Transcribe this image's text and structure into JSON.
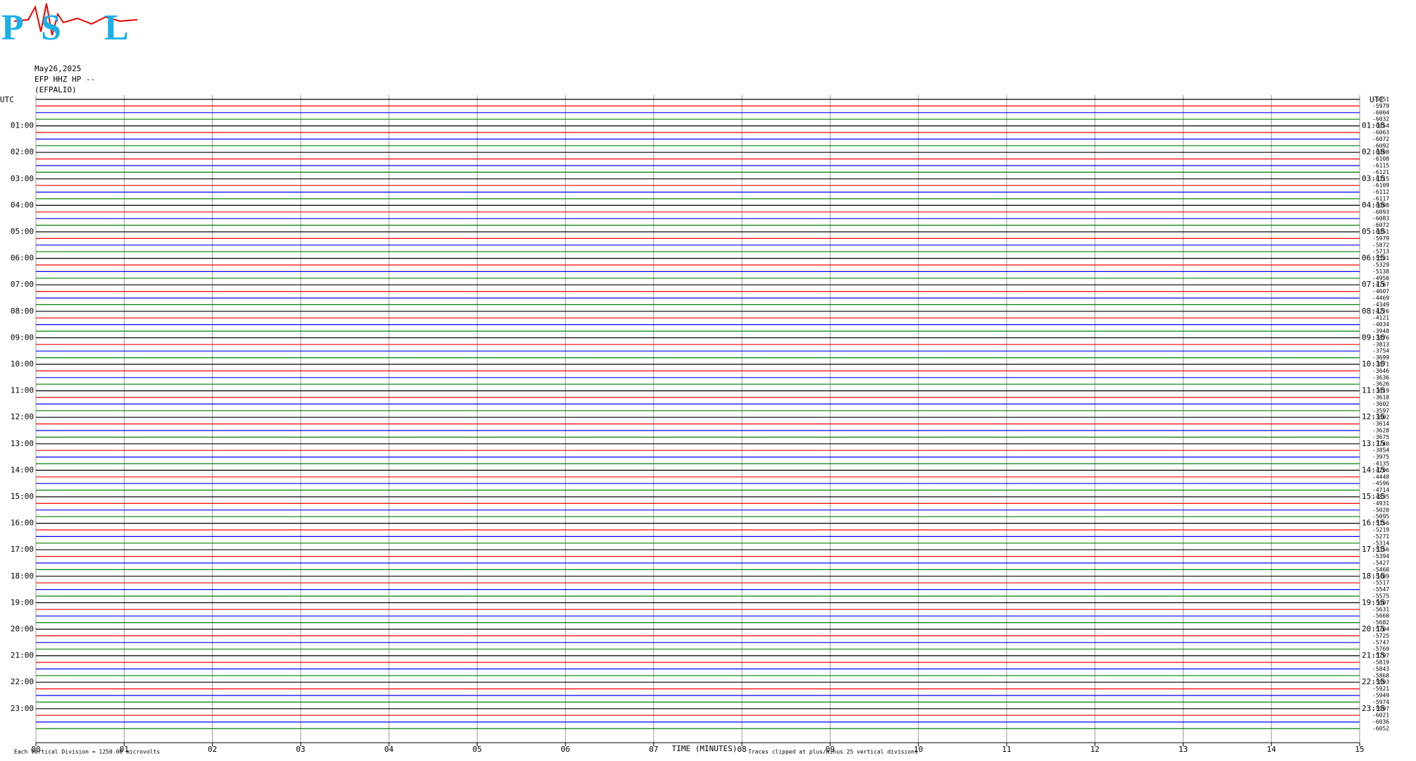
{
  "logo": {
    "letters": [
      "P",
      "S",
      "L"
    ]
  },
  "header": {
    "date": "May26,2025",
    "station": "EFP HHZ HP --",
    "site": "(EFPALIO)"
  },
  "left_axis": {
    "title": "UTC",
    "labels": [
      "01:00",
      "02:00",
      "03:00",
      "04:00",
      "05:00",
      "06:00",
      "07:00",
      "08:00",
      "09:00",
      "10:00",
      "11:00",
      "12:00",
      "13:00",
      "14:00",
      "15:00",
      "16:00",
      "17:00",
      "18:00",
      "19:00",
      "20:00",
      "21:00",
      "22:00",
      "23:00"
    ]
  },
  "right_axis": {
    "title": "UTC",
    "labels": [
      "01:15",
      "02:15",
      "03:15",
      "04:15",
      "05:15",
      "06:15",
      "07:15",
      "08:15",
      "09:15",
      "10:15",
      "11:15",
      "12:15",
      "13:15",
      "14:15",
      "15:15",
      "16:15",
      "17:15",
      "18:15",
      "19:15",
      "20:15",
      "21:15",
      "22:15",
      "23:15"
    ]
  },
  "trace_offsets": [
    -5951,
    -5979,
    -6004,
    -6032,
    -6054,
    -6063,
    -6072,
    -6092,
    -6098,
    -6108,
    -6115,
    -6121,
    -6115,
    -6109,
    -6112,
    -6117,
    -6098,
    -6093,
    -6083,
    -6072,
    -6051,
    -5979,
    -5872,
    -5713,
    -5531,
    -5329,
    -5138,
    -4950,
    -4767,
    -4607,
    -4469,
    -4349,
    -4226,
    -4121,
    -4034,
    -3948,
    -3876,
    -3813,
    -3754,
    -3699,
    -3671,
    -3646,
    -3636,
    -3626,
    -3619,
    -3618,
    -3602,
    -3597,
    -3602,
    -3614,
    -3628,
    -3675,
    -3740,
    -3854,
    -3975,
    -4135,
    -4296,
    -4448,
    -4596,
    -4714,
    -4835,
    -4931,
    -5020,
    -5095,
    -5156,
    -5219,
    -5271,
    -5314,
    -5356,
    -5394,
    -5427,
    -5460,
    -5489,
    -5517,
    -5547,
    -5575,
    -5607,
    -5631,
    -5660,
    -5682,
    -5704,
    -5725,
    -5747,
    -5769,
    -5797,
    -5819,
    -5843,
    -5868,
    -5893,
    -5921,
    -5949,
    -5974,
    -5997,
    -6021,
    -6036,
    -6052
  ],
  "trace_colors": [
    "#000000",
    "#ff0000",
    "#0000ff",
    "#008000"
  ],
  "time_axis": {
    "title": "TIME (MINUTES)",
    "ticks": [
      "00",
      "01",
      "02",
      "03",
      "04",
      "05",
      "06",
      "07",
      "08",
      "09",
      "10",
      "11",
      "12",
      "13",
      "14",
      "15"
    ]
  },
  "footer": {
    "scale": "Each Vertical Division = 1250.00 microvolts",
    "clip": "Traces clipped at plus/minus 25 vertical divisions"
  }
}
